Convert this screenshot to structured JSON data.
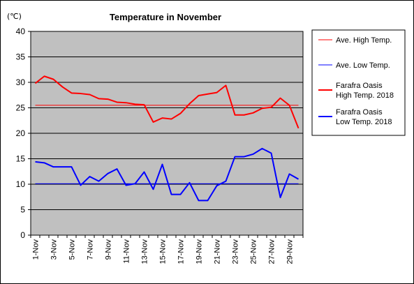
{
  "chart_data": {
    "type": "line",
    "title": "Temperature in November",
    "y_unit": "(℃)",
    "ylim": [
      0,
      40
    ],
    "yticks": [
      0,
      5,
      10,
      15,
      20,
      25,
      30,
      35,
      40
    ],
    "x": [
      1,
      2,
      3,
      4,
      5,
      6,
      7,
      8,
      9,
      10,
      11,
      12,
      13,
      14,
      15,
      16,
      17,
      18,
      19,
      20,
      21,
      22,
      23,
      24,
      25,
      26,
      27,
      28,
      29,
      30
    ],
    "x_tick_labels": [
      "1-Nov",
      "3-Nov",
      "5-Nov",
      "7-Nov",
      "9-Nov",
      "11-Nov",
      "13-Nov",
      "15-Nov",
      "17-Nov",
      "19-Nov",
      "21-Nov",
      "23-Nov",
      "25-Nov",
      "27-Nov",
      "29-Nov"
    ],
    "grid": "horizontal",
    "legend_position": "right",
    "series": [
      {
        "name": "Ave. High Temp.",
        "color": "#ff0000",
        "style": "thin",
        "values": [
          25.5,
          25.5,
          25.5,
          25.5,
          25.5,
          25.5,
          25.5,
          25.5,
          25.5,
          25.5,
          25.5,
          25.5,
          25.5,
          25.5,
          25.5,
          25.5,
          25.5,
          25.5,
          25.5,
          25.5,
          25.5,
          25.5,
          25.5,
          25.5,
          25.5,
          25.5,
          25.5,
          25.5,
          25.5,
          25.5
        ]
      },
      {
        "name": "Ave. Low Temp.",
        "color": "#0000ff",
        "style": "thin",
        "values": [
          10.1,
          10.1,
          10.1,
          10.1,
          10.1,
          10.1,
          10.1,
          10.1,
          10.1,
          10.1,
          10.1,
          10.1,
          10.1,
          10.1,
          10.1,
          10.1,
          10.1,
          10.1,
          10.1,
          10.1,
          10.1,
          10.1,
          10.1,
          10.1,
          10.1,
          10.1,
          10.1,
          10.1,
          10.1,
          10.1
        ]
      },
      {
        "name": "Farafra Oasis High Temp. 2018",
        "legend_lines": [
          "Farafra Oasis",
          "High Temp. 2018"
        ],
        "color": "#ff0000",
        "style": "thick",
        "values": [
          29.8,
          31.2,
          30.6,
          29.1,
          27.9,
          27.8,
          27.6,
          26.8,
          26.7,
          26.1,
          26.0,
          25.7,
          25.6,
          22.2,
          23.0,
          22.8,
          23.9,
          25.8,
          27.4,
          27.7,
          28.0,
          29.4,
          23.6,
          23.6,
          24.0,
          24.9,
          25.1,
          26.9,
          25.5,
          21.0
        ]
      },
      {
        "name": "Farafra Oasis Low Temp. 2018",
        "legend_lines": [
          "Farafra Oasis",
          "Low Temp. 2018"
        ],
        "color": "#0000ff",
        "style": "thick",
        "values": [
          14.4,
          14.2,
          13.4,
          13.4,
          13.4,
          9.8,
          11.5,
          10.6,
          12.1,
          13.0,
          9.8,
          10.1,
          12.4,
          9.0,
          13.9,
          8.0,
          8.0,
          10.3,
          6.8,
          6.8,
          9.7,
          10.6,
          15.4,
          15.4,
          15.9,
          17.0,
          16.1,
          7.4,
          12.0,
          11.0
        ]
      }
    ]
  }
}
